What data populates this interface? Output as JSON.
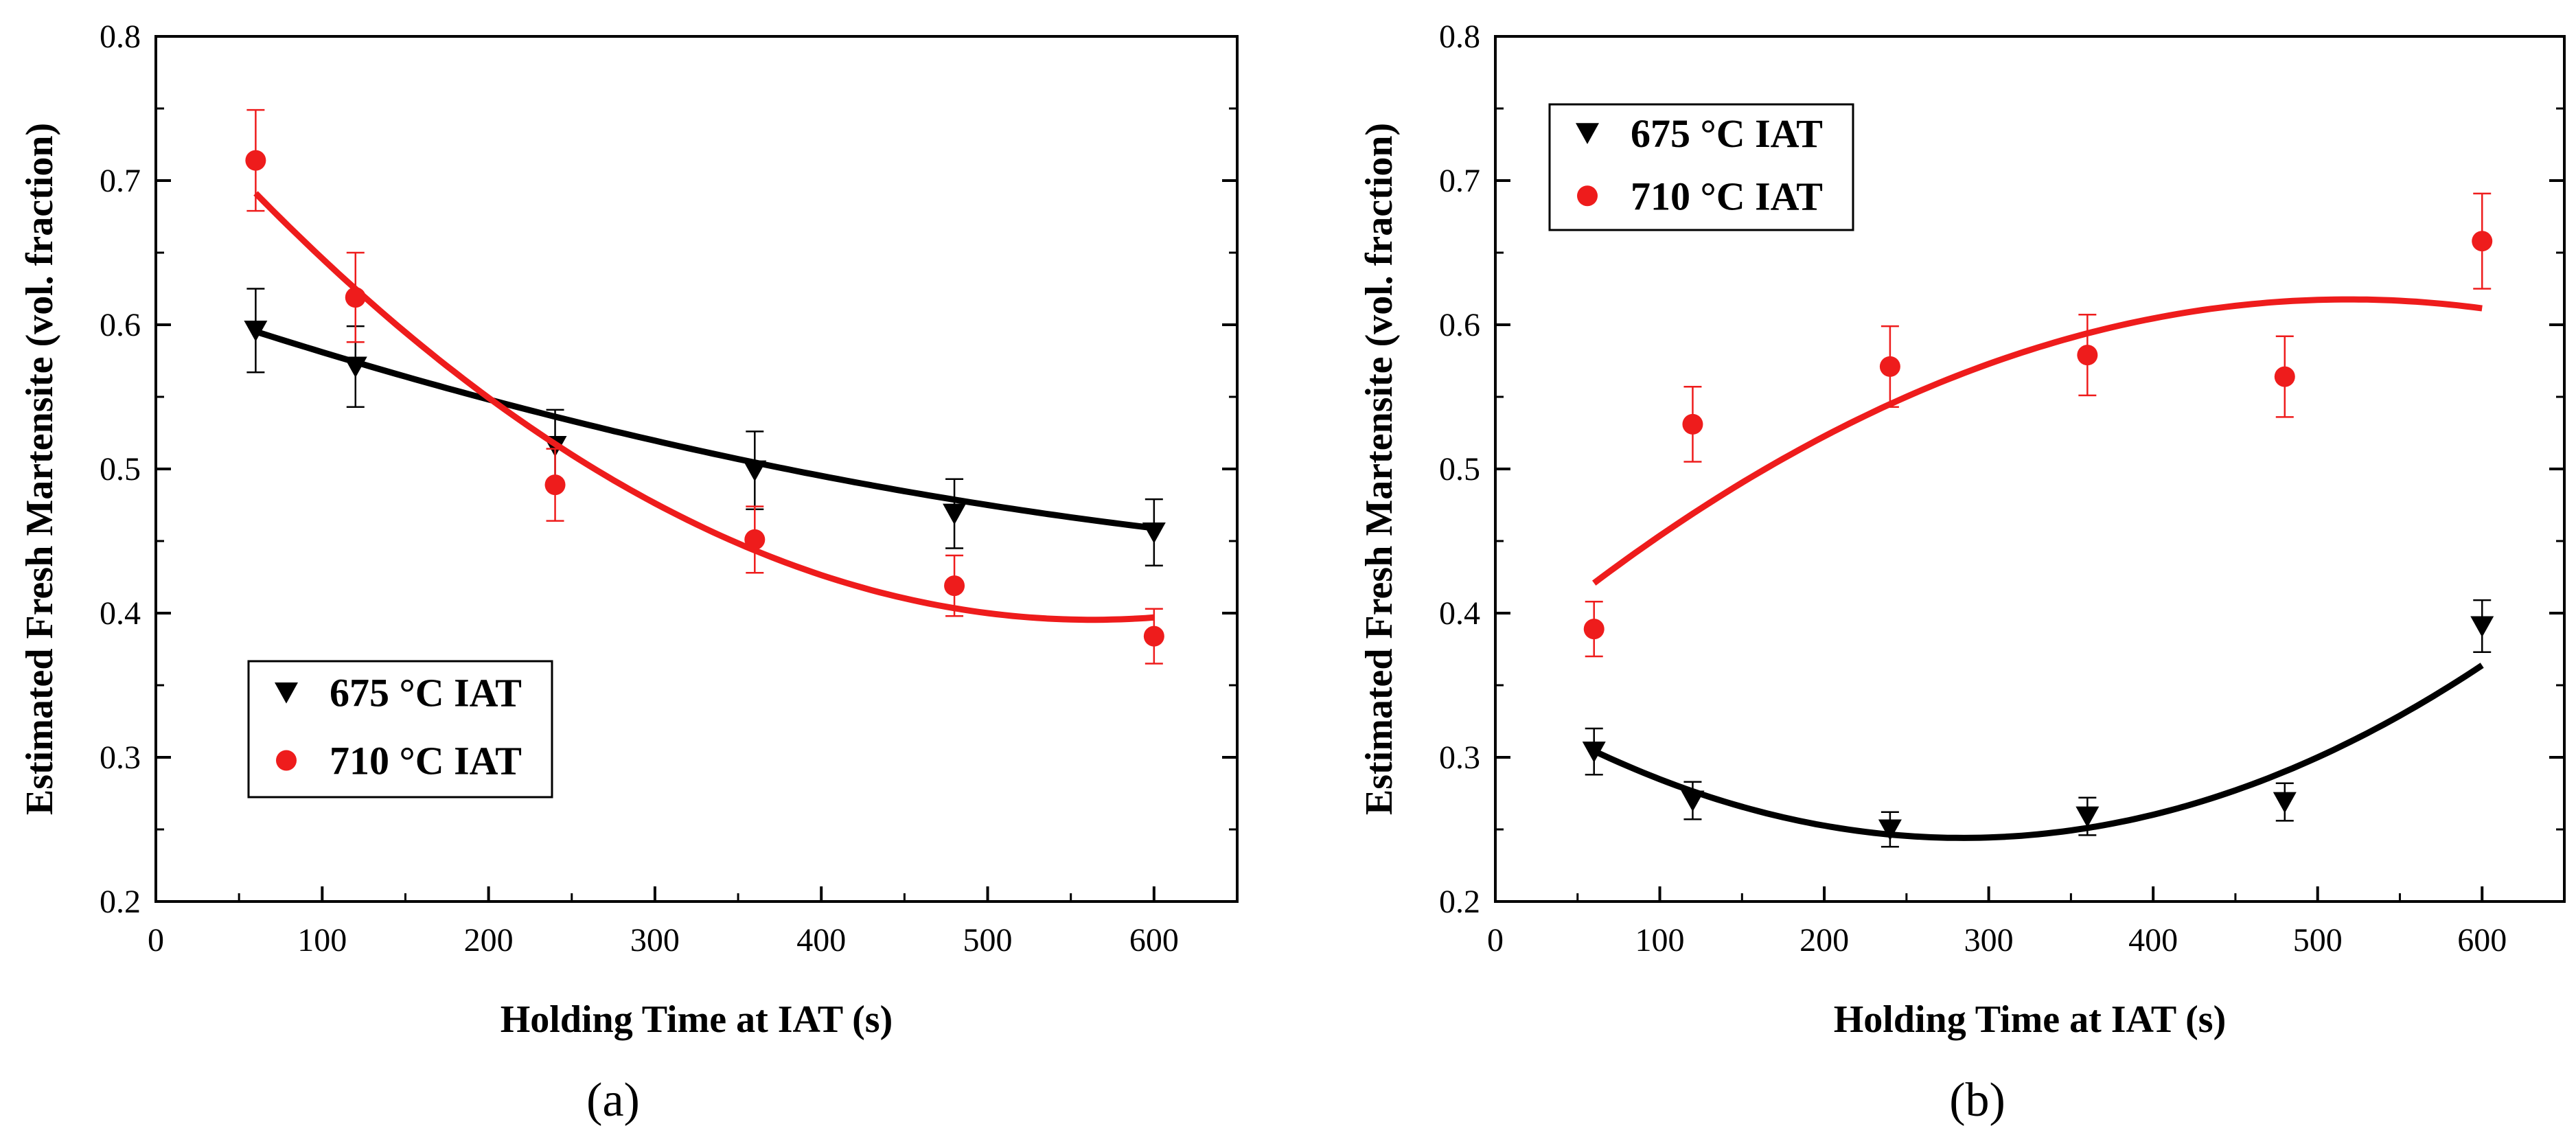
{
  "chart_data": [
    {
      "type": "scatter",
      "panel_label": "(a)",
      "xlabel": "Holding Time at IAT (s)",
      "ylabel": "Estimated Fresh Martensite (vol. fraction)",
      "xlim": [
        0,
        650
      ],
      "ylim": [
        0.2,
        0.8
      ],
      "xticks": [
        "0",
        "100",
        "200",
        "300",
        "400",
        "500",
        "600"
      ],
      "yticks": [
        "0.2",
        "0.3",
        "0.4",
        "0.5",
        "0.6",
        "0.7",
        "0.8"
      ],
      "legend_placement": "lower-left",
      "series": [
        {
          "name": "675 °C IAT",
          "color": "#000000",
          "marker": "triangle-down",
          "x": [
            60,
            120,
            240,
            360,
            480,
            600
          ],
          "y": [
            0.596,
            0.571,
            0.516,
            0.499,
            0.469,
            0.456
          ],
          "err": [
            0.029,
            0.028,
            0.025,
            0.027,
            0.024,
            0.023
          ],
          "fit": [
            0.618,
            -0.000391,
            2.1e-07
          ]
        },
        {
          "name": "710 °C IAT",
          "color": "#ee1c1c",
          "marker": "circle",
          "x": [
            60,
            120,
            240,
            360,
            480,
            600
          ],
          "y": [
            0.714,
            0.619,
            0.489,
            0.451,
            0.419,
            0.384
          ],
          "err": [
            0.035,
            0.031,
            0.025,
            0.023,
            0.021,
            0.019
          ],
          "fit": [
            0.766,
            -0.001317,
            1.17e-06
          ]
        }
      ]
    },
    {
      "type": "scatter",
      "panel_label": "(b)",
      "xlabel": "Holding Time at IAT (s)",
      "ylabel": "Estimated Fresh Martensite (vol. fraction)",
      "xlim": [
        0,
        650
      ],
      "ylim": [
        0.2,
        0.8
      ],
      "xticks": [
        "0",
        "100",
        "200",
        "300",
        "400",
        "500",
        "600"
      ],
      "yticks": [
        "0.2",
        "0.3",
        "0.4",
        "0.5",
        "0.6",
        "0.7",
        "0.8"
      ],
      "legend_placement": "top-left",
      "series": [
        {
          "name": "675 °C IAT",
          "color": "#000000",
          "marker": "triangle-down",
          "x": [
            60,
            120,
            240,
            360,
            480,
            600
          ],
          "y": [
            0.304,
            0.27,
            0.25,
            0.259,
            0.269,
            0.391
          ],
          "err": [
            0.016,
            0.013,
            0.012,
            0.013,
            0.013,
            0.018
          ],
          "fit": [
            0.341,
            -0.000682,
            1.2e-06
          ]
        },
        {
          "name": "710 °C IAT",
          "color": "#ee1c1c",
          "marker": "circle",
          "x": [
            60,
            120,
            240,
            360,
            480,
            600
          ],
          "y": [
            0.389,
            0.531,
            0.571,
            0.579,
            0.564,
            0.658
          ],
          "err": [
            0.019,
            0.026,
            0.028,
            0.028,
            0.028,
            0.033
          ],
          "fit": [
            0.366,
            0.00097,
            -9.35e-07
          ]
        }
      ]
    }
  ]
}
